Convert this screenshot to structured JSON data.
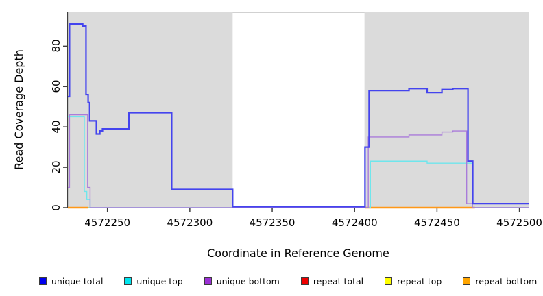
{
  "chart_data": {
    "type": "line",
    "subtype": "step",
    "title": "",
    "xlabel": "Coordinate in Reference Genome",
    "ylabel": "Read Coverage Depth",
    "xlim": [
      4572226,
      4572506
    ],
    "ylim": [
      0,
      97.1
    ],
    "x_ticks": [
      4572250,
      4572300,
      4572350,
      4572400,
      4572450,
      4572500
    ],
    "x_tick_labels": [
      "4572250",
      "4572300",
      "4572350",
      "4572400",
      "4572450",
      "4572500"
    ],
    "y_ticks": [
      0,
      20,
      40,
      60,
      80
    ],
    "y_tick_labels": [
      "0",
      "20",
      "40",
      "60",
      "80"
    ],
    "grid": false,
    "plot_background": "#DBDBDB",
    "axis_color": "#3F3F3F",
    "highlight_regions": [
      {
        "name": "coverage-gap-band",
        "x0": 4572326,
        "x1": 4572406,
        "fill": "#FFFFFF",
        "top_border": "#858585"
      }
    ],
    "series": [
      {
        "name": "repeat-total",
        "legend_label": "repeat total",
        "line_color": "#E60000",
        "stroke_width": 1,
        "segments": [
          [
            [
              4572226,
              0
            ],
            [
              4572506,
              0
            ]
          ]
        ]
      },
      {
        "name": "repeat-top",
        "legend_label": "repeat top",
        "line_color": "#FFFF00",
        "stroke_width": 1,
        "segments": [
          [
            [
              4572226,
              0
            ],
            [
              4572506,
              0
            ]
          ]
        ]
      },
      {
        "name": "zero-baseline",
        "legend_label": null,
        "line_color": "#92CE92",
        "stroke_width": 1.6,
        "segments": [
          [
            [
              4572226,
              0
            ],
            [
              4572506,
              0
            ]
          ]
        ]
      },
      {
        "name": "repeat-bottom",
        "legend_label": "repeat bottom",
        "line_color": "#FF9818",
        "stroke_width": 2.4,
        "segments": [
          [
            [
              4572226,
              0
            ],
            [
              4572238.1,
              0
            ]
          ],
          [
            [
              4572406.3,
              0
            ],
            [
              4572473,
              0
            ]
          ]
        ]
      },
      {
        "name": "unique-top",
        "legend_label": "unique top",
        "line_color": "#6FE6EC",
        "stroke_width": 1.4,
        "segments": [
          [
            [
              4572226,
              45
            ],
            [
              4572236,
              45
            ],
            [
              4572236,
              8
            ],
            [
              4572237.5,
              8
            ],
            [
              4572237.5,
              4
            ],
            [
              4572239.5,
              4
            ],
            [
              4572239.5,
              0
            ],
            [
              4572409.6,
              0
            ],
            [
              4572409.6,
              23
            ],
            [
              4572444,
              23
            ],
            [
              4572444,
              22
            ],
            [
              4572471.5,
              22
            ],
            [
              4572471.5,
              0
            ],
            [
              4572506,
              0
            ]
          ]
        ]
      },
      {
        "name": "unique-bottom",
        "legend_label": "unique bottom",
        "line_color": "#A97BDA",
        "stroke_width": 1.4,
        "segments": [
          [
            [
              4572226,
              10
            ],
            [
              4572227,
              10
            ],
            [
              4572227,
              46
            ],
            [
              4572238,
              46
            ],
            [
              4572238,
              10
            ],
            [
              4572239.5,
              10
            ],
            [
              4572239.5,
              0
            ],
            [
              4572408.3,
              0
            ],
            [
              4572408.3,
              35
            ],
            [
              4572433,
              35
            ],
            [
              4572433,
              36
            ],
            [
              4572453,
              36
            ],
            [
              4572453,
              37.5
            ],
            [
              4572459.6,
              37.5
            ],
            [
              4572459.6,
              38
            ],
            [
              4572468,
              38
            ],
            [
              4572468,
              2
            ],
            [
              4572471.5,
              2
            ],
            [
              4572471.5,
              0
            ],
            [
              4572506,
              0
            ]
          ]
        ]
      },
      {
        "name": "unique-total",
        "legend_label": "unique total",
        "line_color": "#4444EE",
        "stroke_width": 2.2,
        "segments": [
          [
            [
              4572226,
              55
            ],
            [
              4572227,
              55
            ],
            [
              4572227,
              91
            ],
            [
              4572235,
              91
            ],
            [
              4572235,
              90
            ],
            [
              4572237,
              90
            ],
            [
              4572237,
              56
            ],
            [
              4572238.3,
              56
            ],
            [
              4572238.3,
              52
            ],
            [
              4572239.2,
              52
            ],
            [
              4572239.2,
              43
            ],
            [
              4572243.3,
              43
            ],
            [
              4572243.3,
              36.5
            ],
            [
              4572245.4,
              36.5
            ],
            [
              4572245.4,
              38
            ],
            [
              4572247,
              38
            ],
            [
              4572247,
              39
            ],
            [
              4572263,
              39
            ],
            [
              4572263,
              47
            ],
            [
              4572289,
              47
            ],
            [
              4572289,
              9
            ],
            [
              4572326,
              9
            ],
            [
              4572326,
              0.5
            ],
            [
              4572406.3,
              0.5
            ],
            [
              4572406.3,
              30
            ],
            [
              4572408.8,
              30
            ],
            [
              4572408.8,
              58
            ],
            [
              4572433,
              58
            ],
            [
              4572433,
              59
            ],
            [
              4572444,
              59
            ],
            [
              4572444,
              57
            ],
            [
              4572453,
              57
            ],
            [
              4572453,
              58.5
            ],
            [
              4572459.6,
              58.5
            ],
            [
              4572459.6,
              59
            ],
            [
              4572468.8,
              59
            ],
            [
              4572468.8,
              23
            ],
            [
              4572471.7,
              23
            ],
            [
              4572471.7,
              2
            ],
            [
              4572506,
              2
            ]
          ]
        ]
      }
    ],
    "legend": {
      "position": "bottom",
      "items": [
        {
          "label": "unique total",
          "color": "#0000EE"
        },
        {
          "label": "unique top",
          "color": "#00E5EE"
        },
        {
          "label": "unique bottom",
          "color": "#9B30D5"
        },
        {
          "label": "repeat total",
          "color": "#EE0000"
        },
        {
          "label": "repeat top",
          "color": "#FFFF00"
        },
        {
          "label": "repeat bottom",
          "color": "#FFA500"
        }
      ]
    }
  }
}
